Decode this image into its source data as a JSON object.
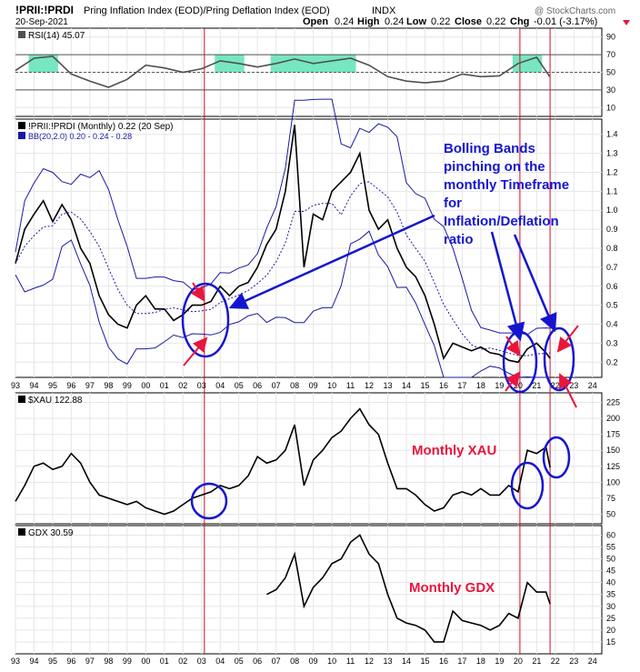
{
  "header": {
    "symbol": "!PRII:!PRDI",
    "description": "Pring Inflation Index (EOD)/Pring Deflation Index (EOD)",
    "exchange": "INDX",
    "date": "20-Sep-2021",
    "watermark": "@ StockCharts.com",
    "quote": {
      "open_label": "Open",
      "open": "0.24",
      "high_label": "High",
      "high": "0.24",
      "low_label": "Low",
      "low": "0.22",
      "close_label": "Close",
      "close": "0.22",
      "chg_label": "Chg",
      "chg": "-0.01 (-3.17%)"
    }
  },
  "colors": {
    "price_line": "#000000",
    "rsi_line": "#505050",
    "bands": "#1a1aa0",
    "annotation_blue": "#1515d0",
    "annotation_red": "#e8163c",
    "vline": "#c8102e",
    "rsi_fill": "#5fe3b4",
    "grid": "#e6e6e6"
  },
  "x_axis_labels": [
    "93",
    "94",
    "95",
    "96",
    "97",
    "98",
    "99",
    "00",
    "01",
    "02",
    "03",
    "04",
    "05",
    "06",
    "07",
    "08",
    "09",
    "10",
    "11",
    "12",
    "13",
    "14",
    "15",
    "16",
    "17",
    "18",
    "19",
    "20",
    "21",
    "22",
    "23",
    "24"
  ],
  "annotations": {
    "bands_text": [
      "Bolling Bands",
      "pinching on the",
      "monthly Timeframe",
      "for",
      "Inflation/Deflation",
      "ratio"
    ],
    "xau_text": "Monthly XAU",
    "gdx_text": "Monthly GDX"
  },
  "chart_data": [
    {
      "type": "line",
      "panel": "rsi",
      "legend": "RSI(14) 45.07",
      "indicator": "RSI(14)",
      "last_value": 45.07,
      "ytick_labels": [
        "90",
        "70",
        "50",
        "30",
        "10"
      ],
      "reference_lines": [
        70,
        50,
        30
      ],
      "ylim": [
        0,
        100
      ],
      "x_years": [
        1993.0,
        1994.0,
        1995.0,
        1996.0,
        1997.0,
        1998.0,
        1999.0,
        2000.0,
        2001.0,
        2002.0,
        2003.0,
        2004.0,
        2005.0,
        2006.0,
        2007.0,
        2008.0,
        2009.0,
        2010.0,
        2011.0,
        2012.0,
        2013.0,
        2014.0,
        2015.0,
        2016.0,
        2017.0,
        2018.0,
        2019.0,
        2020.0,
        2021.0,
        2021.7
      ],
      "values": [
        52,
        66,
        68,
        48,
        40,
        33,
        42,
        58,
        55,
        50,
        54,
        63,
        60,
        56,
        60,
        65,
        60,
        63,
        66,
        58,
        45,
        40,
        38,
        40,
        48,
        45,
        46,
        60,
        67,
        45
      ]
    },
    {
      "type": "line",
      "panel": "ratio",
      "legend": "!PRII:!PRDI (Monthly) 0.22 (20 Sep)",
      "bb_legend": "BB(20,2.0) 0.20 - 0.24 - 0.28",
      "last_value": 0.22,
      "bollinger": {
        "period": 20,
        "stddev": 2.0,
        "lower": 0.2,
        "middle": 0.24,
        "upper": 0.28
      },
      "ytick_labels": [
        "1.4",
        "1.3",
        "1.2",
        "1.1",
        "1.0",
        "0.9",
        "0.8",
        "0.7",
        "0.6",
        "0.5",
        "0.4",
        "0.3",
        "0.2"
      ],
      "ylim": [
        0.12,
        1.48
      ],
      "x_years": [
        1993.0,
        1993.5,
        1994.0,
        1994.5,
        1995.0,
        1995.5,
        1996.0,
        1996.5,
        1997.0,
        1997.5,
        1998.0,
        1998.5,
        1999.0,
        1999.5,
        2000.0,
        2000.5,
        2001.0,
        2001.5,
        2002.0,
        2002.5,
        2003.0,
        2003.5,
        2004.0,
        2004.5,
        2005.0,
        2005.5,
        2006.0,
        2006.5,
        2007.0,
        2007.5,
        2008.0,
        2008.5,
        2009.0,
        2009.5,
        2010.0,
        2010.5,
        2011.0,
        2011.5,
        2012.0,
        2012.5,
        2013.0,
        2013.5,
        2014.0,
        2014.5,
        2015.0,
        2015.5,
        2016.0,
        2016.5,
        2017.0,
        2017.5,
        2018.0,
        2018.5,
        2019.0,
        2019.5,
        2020.0,
        2020.5,
        2021.0,
        2021.5,
        2021.72
      ],
      "values": [
        0.72,
        0.9,
        0.98,
        1.05,
        0.94,
        1.03,
        0.95,
        0.8,
        0.72,
        0.55,
        0.45,
        0.4,
        0.38,
        0.5,
        0.55,
        0.48,
        0.48,
        0.42,
        0.45,
        0.5,
        0.5,
        0.52,
        0.6,
        0.55,
        0.6,
        0.62,
        0.7,
        0.82,
        0.9,
        1.1,
        1.45,
        0.7,
        0.98,
        0.95,
        1.1,
        1.15,
        1.2,
        1.3,
        1.0,
        0.9,
        0.95,
        0.8,
        0.7,
        0.65,
        0.55,
        0.4,
        0.22,
        0.3,
        0.28,
        0.26,
        0.28,
        0.25,
        0.24,
        0.21,
        0.2,
        0.27,
        0.3,
        0.25,
        0.22
      ]
    },
    {
      "type": "line",
      "panel": "xau",
      "legend": "$XAU 122.88",
      "last_value": 122.88,
      "ytick_labels": [
        "225",
        "200",
        "175",
        "150",
        "125",
        "100",
        "75",
        "50"
      ],
      "ylim": [
        35,
        240
      ],
      "x_years": [
        1993.0,
        1993.5,
        1994.0,
        1994.5,
        1995.0,
        1995.5,
        1996.0,
        1996.5,
        1997.0,
        1997.5,
        1998.0,
        1998.5,
        1999.0,
        1999.5,
        2000.0,
        2000.5,
        2001.0,
        2001.5,
        2002.0,
        2002.5,
        2003.0,
        2003.5,
        2004.0,
        2004.5,
        2005.0,
        2005.5,
        2006.0,
        2006.5,
        2007.0,
        2007.5,
        2008.0,
        2008.5,
        2009.0,
        2009.5,
        2010.0,
        2010.5,
        2011.0,
        2011.5,
        2012.0,
        2012.5,
        2013.0,
        2013.5,
        2014.0,
        2014.5,
        2015.0,
        2015.5,
        2016.0,
        2016.5,
        2017.0,
        2017.5,
        2018.0,
        2018.5,
        2019.0,
        2019.5,
        2020.0,
        2020.5,
        2021.0,
        2021.5,
        2021.72
      ],
      "values": [
        70,
        95,
        125,
        130,
        120,
        125,
        145,
        130,
        100,
        80,
        75,
        70,
        65,
        70,
        60,
        55,
        50,
        55,
        65,
        75,
        80,
        85,
        95,
        90,
        95,
        110,
        140,
        130,
        135,
        150,
        190,
        95,
        135,
        150,
        170,
        180,
        200,
        215,
        190,
        175,
        130,
        90,
        90,
        80,
        65,
        55,
        60,
        80,
        85,
        80,
        90,
        80,
        80,
        95,
        85,
        150,
        145,
        155,
        123
      ]
    },
    {
      "type": "line",
      "panel": "gdx",
      "legend": "GDX 30.59",
      "last_value": 30.59,
      "ytick_labels": [
        "60",
        "55",
        "50",
        "45",
        "40",
        "35",
        "30",
        "25",
        "20",
        "15"
      ],
      "ylim": [
        10,
        64
      ],
      "x_years": [
        2006.5,
        2007.0,
        2007.5,
        2008.0,
        2008.5,
        2009.0,
        2009.5,
        2010.0,
        2010.5,
        2011.0,
        2011.5,
        2012.0,
        2012.5,
        2013.0,
        2013.5,
        2014.0,
        2014.5,
        2015.0,
        2015.5,
        2016.0,
        2016.5,
        2017.0,
        2017.5,
        2018.0,
        2018.5,
        2019.0,
        2019.5,
        2020.0,
        2020.5,
        2021.0,
        2021.5,
        2021.72
      ],
      "values": [
        35,
        37,
        42,
        52,
        30,
        38,
        42,
        48,
        50,
        57,
        60,
        52,
        48,
        35,
        25,
        23,
        22,
        20,
        15,
        15,
        28,
        24,
        23,
        22,
        20,
        22,
        27,
        25,
        40,
        36,
        36,
        31
      ]
    }
  ]
}
